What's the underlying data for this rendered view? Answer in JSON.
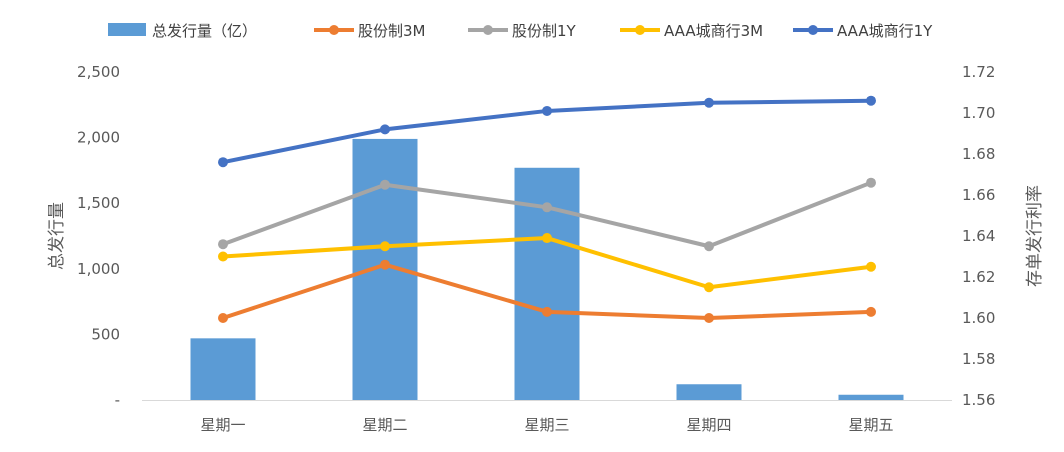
{
  "chart_data": {
    "type": "bar",
    "categories": [
      "星期一",
      "星期二",
      "星期三",
      "星期四",
      "星期五"
    ],
    "bar_series": {
      "name": "总发行量（亿）",
      "axis": "left",
      "color": "#5B9BD5",
      "values": [
        470,
        1990,
        1770,
        120,
        40
      ]
    },
    "line_series": [
      {
        "name": "股份制3M",
        "axis": "right",
        "color": "#ED7D31",
        "values": [
          1.6,
          1.626,
          1.603,
          1.6,
          1.603
        ]
      },
      {
        "name": "股份制1Y",
        "axis": "right",
        "color": "#A5A5A5",
        "values": [
          1.636,
          1.665,
          1.654,
          1.635,
          1.666
        ]
      },
      {
        "name": "AAA城商行3M",
        "axis": "right",
        "color": "#FFC000",
        "values": [
          1.63,
          1.635,
          1.639,
          1.615,
          1.625
        ]
      },
      {
        "name": "AAA城商行1Y",
        "axis": "right",
        "color": "#4472C4",
        "values": [
          1.676,
          1.692,
          1.701,
          1.705,
          1.706
        ]
      }
    ],
    "y_left": {
      "label": "总发行量",
      "ylim": [
        0,
        2500
      ],
      "ticks": [
        0,
        500,
        1000,
        1500,
        2000,
        2500
      ],
      "tick_labels": [
        "-",
        "500",
        "1,000",
        "1,500",
        "2,000",
        "2,500"
      ]
    },
    "y_right": {
      "label": "存单发行利率",
      "ylim": [
        1.56,
        1.72
      ],
      "ticks": [
        1.56,
        1.58,
        1.6,
        1.62,
        1.64,
        1.66,
        1.68,
        1.7,
        1.72
      ],
      "tick_labels": [
        "1.56",
        "1.58",
        "1.60",
        "1.62",
        "1.64",
        "1.66",
        "1.68",
        "1.70",
        "1.72"
      ]
    },
    "legend_position": "top",
    "grid": false
  }
}
